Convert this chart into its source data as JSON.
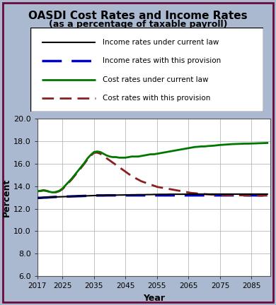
{
  "title_line1": "OASDI Cost Rates and Income Rates",
  "title_line2": "(as a percentage of taxable payroll)",
  "xlabel": "Year",
  "ylabel": "Percent",
  "xlim": [
    2017,
    2091
  ],
  "ylim": [
    6.0,
    20.0
  ],
  "yticks": [
    6.0,
    8.0,
    10.0,
    12.0,
    14.0,
    16.0,
    18.0,
    20.0
  ],
  "xticks": [
    2017,
    2025,
    2035,
    2045,
    2055,
    2065,
    2075,
    2085
  ],
  "background_color": "#aab8d0",
  "plot_bg_color": "#ffffff",
  "years": [
    2017,
    2018,
    2019,
    2020,
    2021,
    2022,
    2023,
    2024,
    2025,
    2026,
    2027,
    2028,
    2029,
    2030,
    2031,
    2032,
    2033,
    2034,
    2035,
    2036,
    2037,
    2038,
    2039,
    2040,
    2041,
    2042,
    2043,
    2044,
    2045,
    2046,
    2047,
    2048,
    2049,
    2050,
    2051,
    2052,
    2053,
    2054,
    2055,
    2056,
    2057,
    2058,
    2059,
    2060,
    2061,
    2062,
    2063,
    2064,
    2065,
    2066,
    2067,
    2068,
    2069,
    2070,
    2071,
    2072,
    2073,
    2074,
    2075,
    2076,
    2077,
    2078,
    2079,
    2080,
    2081,
    2082,
    2083,
    2084,
    2085,
    2086,
    2087,
    2088,
    2089,
    2090
  ],
  "income_current_law": [
    12.96,
    12.97,
    12.99,
    13.0,
    13.02,
    13.04,
    13.05,
    13.06,
    13.07,
    13.08,
    13.09,
    13.1,
    13.11,
    13.12,
    13.13,
    13.14,
    13.15,
    13.16,
    13.17,
    13.18,
    13.19,
    13.19,
    13.2,
    13.2,
    13.21,
    13.21,
    13.22,
    13.22,
    13.23,
    13.23,
    13.24,
    13.24,
    13.25,
    13.25,
    13.25,
    13.26,
    13.26,
    13.27,
    13.27,
    13.28,
    13.28,
    13.28,
    13.29,
    13.29,
    13.29,
    13.29,
    13.29,
    13.29,
    13.3,
    13.3,
    13.3,
    13.3,
    13.3,
    13.3,
    13.3,
    13.3,
    13.3,
    13.3,
    13.3,
    13.3,
    13.3,
    13.3,
    13.3,
    13.3,
    13.3,
    13.3,
    13.3,
    13.3,
    13.3,
    13.3,
    13.3,
    13.3,
    13.3,
    13.3
  ],
  "income_provision": [
    12.96,
    12.97,
    12.99,
    13.0,
    13.02,
    13.04,
    13.05,
    13.06,
    13.07,
    13.08,
    13.09,
    13.1,
    13.11,
    13.12,
    13.13,
    13.14,
    13.15,
    13.16,
    13.17,
    13.18,
    13.18,
    13.18,
    13.19,
    13.19,
    13.19,
    13.19,
    13.19,
    13.19,
    13.19,
    13.19,
    13.19,
    13.19,
    13.19,
    13.19,
    13.19,
    13.19,
    13.19,
    13.19,
    13.19,
    13.19,
    13.19,
    13.19,
    13.19,
    13.19,
    13.19,
    13.19,
    13.19,
    13.19,
    13.19,
    13.19,
    13.19,
    13.19,
    13.19,
    13.19,
    13.19,
    13.19,
    13.19,
    13.19,
    13.19,
    13.19,
    13.19,
    13.19,
    13.19,
    13.19,
    13.19,
    13.19,
    13.19,
    13.19,
    13.19,
    13.19,
    13.19,
    13.19,
    13.19,
    13.19
  ],
  "cost_current_law": [
    13.55,
    13.6,
    13.65,
    13.6,
    13.5,
    13.45,
    13.5,
    13.6,
    13.8,
    14.1,
    14.4,
    14.7,
    15.05,
    15.4,
    15.75,
    16.1,
    16.5,
    16.8,
    17.05,
    17.1,
    17.05,
    16.9,
    16.75,
    16.65,
    16.6,
    16.6,
    16.55,
    16.55,
    16.55,
    16.6,
    16.65,
    16.65,
    16.65,
    16.7,
    16.75,
    16.8,
    16.85,
    16.85,
    16.9,
    16.95,
    17.0,
    17.05,
    17.1,
    17.15,
    17.2,
    17.25,
    17.3,
    17.35,
    17.4,
    17.45,
    17.5,
    17.52,
    17.55,
    17.55,
    17.58,
    17.6,
    17.62,
    17.65,
    17.68,
    17.7,
    17.72,
    17.74,
    17.76,
    17.77,
    17.78,
    17.79,
    17.8,
    17.8,
    17.81,
    17.82,
    17.83,
    17.84,
    17.85,
    17.86
  ],
  "cost_provision": [
    13.55,
    13.58,
    13.62,
    13.58,
    13.48,
    13.42,
    13.47,
    13.56,
    13.74,
    14.03,
    14.33,
    14.63,
    14.98,
    15.33,
    15.68,
    16.03,
    16.43,
    16.73,
    16.98,
    17.0,
    16.9,
    16.7,
    16.5,
    16.3,
    16.1,
    15.9,
    15.7,
    15.5,
    15.3,
    15.1,
    14.9,
    14.75,
    14.6,
    14.45,
    14.35,
    14.25,
    14.15,
    14.05,
    13.95,
    13.9,
    13.85,
    13.8,
    13.75,
    13.7,
    13.65,
    13.6,
    13.55,
    13.5,
    13.45,
    13.4,
    13.38,
    13.35,
    13.32,
    13.3,
    13.28,
    13.26,
    13.25,
    13.24,
    13.23,
    13.22,
    13.21,
    13.21,
    13.2,
    13.2,
    13.2,
    13.19,
    13.19,
    13.18,
    13.18,
    13.18,
    13.18,
    13.17,
    13.17,
    13.17
  ],
  "income_current_law_color": "#000000",
  "income_provision_color": "#0000cc",
  "cost_current_law_color": "#007700",
  "cost_provision_color": "#8B2020",
  "legend_labels": [
    "Income rates under current law",
    "Income rates with this provision",
    "Cost rates under current law",
    "Cost rates with this provision"
  ],
  "border_color": "#6b0a3a"
}
